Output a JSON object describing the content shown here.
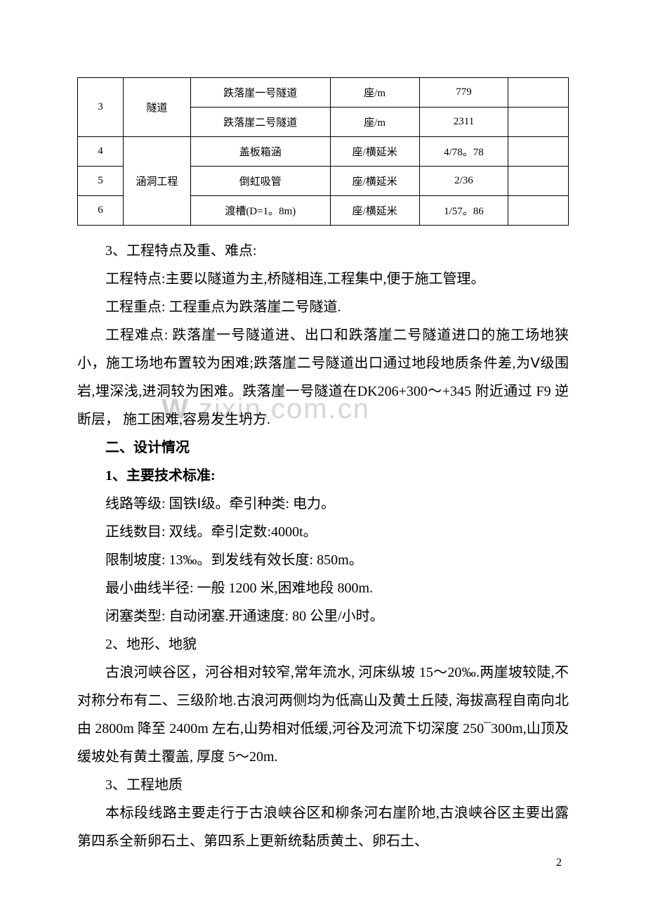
{
  "table": {
    "rows": [
      {
        "seq": "3",
        "cat": "隧道",
        "name": "跌落崖一号隧道",
        "unit": "座/m",
        "value": "779",
        "remark": ""
      },
      {
        "seq": "",
        "cat": "",
        "name": "跌落崖二号隧道",
        "unit": "座/m",
        "value": "2311",
        "remark": ""
      },
      {
        "seq": "4",
        "cat": "",
        "name": "盖板箱涵",
        "unit": "座/横延米",
        "value": "4/78。78",
        "remark": ""
      },
      {
        "seq": "5",
        "cat": "涵洞工程",
        "name": "倒虹吸管",
        "unit": "座/横延米",
        "value": "2/36",
        "remark": ""
      },
      {
        "seq": "6",
        "cat": "",
        "name": "渡槽(D=1。8m)",
        "unit": "座/横延米",
        "value": "1/57。86",
        "remark": ""
      }
    ]
  },
  "paragraphs": {
    "p1": "3、工程特点及重、难点:",
    "p2": "工程特点:主要以隧道为主,桥隧相连,工程集中,便于施工管理。",
    "p3": "工程重点: 工程重点为跌落崖二号隧道.",
    "p4": "工程难点: 跌落崖一号隧道进、出口和跌落崖二号隧道进口的施工场地狭小，施工场地布置较为困难;跌落崖二号隧道出口通过地段地质条件差,为Ⅴ级围岩,埋深浅,进洞较为困难。跌落崖一号隧道在DK206+300～+345 附近通过 F9 逆断层， 施工困难,容易发生坍方.",
    "h1": "二、设计情况",
    "s1": "1、主要技术标准:",
    "p5": "线路等级: 国铁Ⅰ级。牵引种类: 电力。",
    "p6": "正线数目: 双线。牵引定数:4000t。",
    "p7": "限制坡度: 13‰。到发线有效长度: 850m。",
    "p8": "最小曲线半径: 一般 1200 米,困难地段 800m.",
    "p9": "闭塞类型: 自动闭塞.开通速度: 80 公里/小时。",
    "p10": "2、地形、地貌",
    "p11": "古浪河峡谷区，河谷相对较窄,常年流水, 河床纵坡 15～20‰.两崖坡较陡,不对称分布有二、三级阶地.古浪河两侧均为低高山及黄土丘陵, 海拔高程自南向北由 2800m 降至 2400m 左右,山势相对低缓,河谷及河流下切深度 250¯300m,山顶及缓坡处有黄土覆盖, 厚度 5～20m.",
    "p12": "3、工程地质",
    "p13": "本标段线路主要走行于古浪峡谷区和柳条河右崖阶地,古浪峡谷区主要出露第四系全新卵石土、第四系上更新统黏质黄土、卵石土、"
  },
  "watermark": {
    "prefix": "W",
    "suffix": ".zixin.com.cn"
  },
  "pageNumber": "2"
}
